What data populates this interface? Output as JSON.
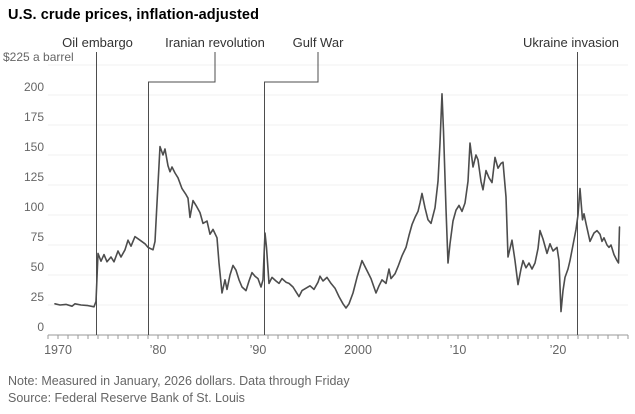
{
  "header": {
    "title": "U.S. crude prices, inflation-adjusted"
  },
  "footer": {
    "note": "Note: Measured in January, 2026 dollars. Data through Friday",
    "source": "Source: Federal Reserve Bank of St. Louis"
  },
  "colors": {
    "line": "#4d4d4d",
    "annotation_line": "#4d4d4d",
    "annotation_text": "#333333",
    "axis_text": "#666666",
    "grid": "#f0f0f0",
    "axis": "#999999",
    "title_text": "#000000"
  },
  "chart_data": {
    "type": "line",
    "title": "U.S. crude prices, inflation-adjusted",
    "y_axis_top_label": "$225 a barrel",
    "grid": true,
    "x_range": [
      1969,
      2027
    ],
    "y_range": [
      0,
      225
    ],
    "y_ticks": [
      0,
      25,
      50,
      75,
      100,
      125,
      150,
      175,
      200,
      225
    ],
    "x_tick_years": [
      1970,
      1980,
      1990,
      2000,
      2010,
      2020
    ],
    "x_tick_labels": [
      "1970",
      "’80",
      "’90",
      "2000",
      "’10",
      "’20"
    ],
    "minor_tick_step_years": 1,
    "annotations": [
      {
        "label": "Oil embargo",
        "year": 1973.85,
        "label_year": 1973.95,
        "elbow": false
      },
      {
        "label": "Iranian revolution",
        "year": 1979.05,
        "label_year": 1985.7,
        "elbow": true
      },
      {
        "label": "Gulf War",
        "year": 1990.65,
        "label_year": 1996.0,
        "elbow": true
      },
      {
        "label": "Ukraine invasion",
        "year": 2021.95,
        "label_year": 2021.3,
        "elbow": false
      }
    ],
    "series": [
      {
        "name": "U.S. crude price, inflation-adjusted ($ a barrel)",
        "points": [
          [
            1969.7,
            26
          ],
          [
            1970.2,
            25
          ],
          [
            1970.8,
            25.5
          ],
          [
            1971.4,
            24
          ],
          [
            1971.7,
            26
          ],
          [
            1972.3,
            25
          ],
          [
            1973.0,
            24.5
          ],
          [
            1973.6,
            23.5
          ],
          [
            1973.8,
            28
          ],
          [
            1974.0,
            68
          ],
          [
            1974.3,
            61.5
          ],
          [
            1974.6,
            67
          ],
          [
            1974.9,
            61
          ],
          [
            1975.3,
            65
          ],
          [
            1975.6,
            61
          ],
          [
            1976.0,
            70
          ],
          [
            1976.3,
            65
          ],
          [
            1976.7,
            71
          ],
          [
            1977.0,
            79
          ],
          [
            1977.3,
            74
          ],
          [
            1977.7,
            82
          ],
          [
            1978.2,
            79
          ],
          [
            1978.7,
            76
          ],
          [
            1979.0,
            73
          ],
          [
            1979.5,
            71
          ],
          [
            1979.7,
            78
          ],
          [
            1979.9,
            110
          ],
          [
            1980.2,
            157
          ],
          [
            1980.5,
            150
          ],
          [
            1980.7,
            155
          ],
          [
            1981.0,
            141
          ],
          [
            1981.2,
            136
          ],
          [
            1981.4,
            140
          ],
          [
            1981.7,
            135
          ],
          [
            1982.0,
            131
          ],
          [
            1982.4,
            122
          ],
          [
            1982.8,
            117
          ],
          [
            1983.0,
            114
          ],
          [
            1983.2,
            98
          ],
          [
            1983.5,
            112
          ],
          [
            1983.8,
            108
          ],
          [
            1984.2,
            102
          ],
          [
            1984.5,
            93
          ],
          [
            1984.9,
            95
          ],
          [
            1985.2,
            84
          ],
          [
            1985.5,
            88
          ],
          [
            1985.9,
            81
          ],
          [
            1986.1,
            60
          ],
          [
            1986.4,
            35
          ],
          [
            1986.7,
            46
          ],
          [
            1986.9,
            38
          ],
          [
            1987.2,
            50
          ],
          [
            1987.5,
            58
          ],
          [
            1987.8,
            54
          ],
          [
            1988.1,
            46
          ],
          [
            1988.4,
            40
          ],
          [
            1988.8,
            37
          ],
          [
            1989.1,
            45
          ],
          [
            1989.4,
            52
          ],
          [
            1989.7,
            49
          ],
          [
            1990.0,
            47
          ],
          [
            1990.3,
            40
          ],
          [
            1990.5,
            46
          ],
          [
            1990.7,
            85
          ],
          [
            1990.85,
            73
          ],
          [
            1991.1,
            43
          ],
          [
            1991.4,
            48
          ],
          [
            1991.8,
            45
          ],
          [
            1992.1,
            43
          ],
          [
            1992.4,
            47
          ],
          [
            1992.8,
            44
          ],
          [
            1993.1,
            43
          ],
          [
            1993.5,
            40
          ],
          [
            1993.8,
            36
          ],
          [
            1994.1,
            32
          ],
          [
            1994.4,
            37
          ],
          [
            1994.8,
            39
          ],
          [
            1995.2,
            41
          ],
          [
            1995.6,
            38
          ],
          [
            1996.0,
            44
          ],
          [
            1996.2,
            49
          ],
          [
            1996.5,
            45
          ],
          [
            1996.9,
            48
          ],
          [
            1997.3,
            43
          ],
          [
            1997.7,
            39
          ],
          [
            1998.1,
            32
          ],
          [
            1998.5,
            26
          ],
          [
            1998.8,
            22.5
          ],
          [
            1999.1,
            26
          ],
          [
            1999.5,
            35
          ],
          [
            1999.9,
            48
          ],
          [
            2000.4,
            62
          ],
          [
            2000.7,
            57
          ],
          [
            2001.0,
            52
          ],
          [
            2001.3,
            47
          ],
          [
            2001.8,
            35
          ],
          [
            2002.1,
            41
          ],
          [
            2002.4,
            46
          ],
          [
            2002.8,
            43
          ],
          [
            2003.1,
            55
          ],
          [
            2003.3,
            47
          ],
          [
            2003.7,
            51
          ],
          [
            2004.0,
            57
          ],
          [
            2004.4,
            66
          ],
          [
            2004.8,
            73
          ],
          [
            2005.1,
            83
          ],
          [
            2005.4,
            92
          ],
          [
            2005.7,
            98
          ],
          [
            2006.0,
            103
          ],
          [
            2006.2,
            110
          ],
          [
            2006.4,
            118
          ],
          [
            2006.7,
            106
          ],
          [
            2007.0,
            96
          ],
          [
            2007.3,
            93
          ],
          [
            2007.7,
            106
          ],
          [
            2008.0,
            128
          ],
          [
            2008.2,
            160
          ],
          [
            2008.4,
            201
          ],
          [
            2008.55,
            170
          ],
          [
            2008.8,
            105
          ],
          [
            2009.0,
            60
          ],
          [
            2009.2,
            76
          ],
          [
            2009.5,
            95
          ],
          [
            2009.8,
            104
          ],
          [
            2010.1,
            108
          ],
          [
            2010.4,
            103
          ],
          [
            2010.7,
            110
          ],
          [
            2011.0,
            128
          ],
          [
            2011.2,
            160
          ],
          [
            2011.5,
            140
          ],
          [
            2011.8,
            150
          ],
          [
            2012.0,
            146
          ],
          [
            2012.3,
            128
          ],
          [
            2012.5,
            121
          ],
          [
            2012.8,
            137
          ],
          [
            2013.1,
            131
          ],
          [
            2013.4,
            127
          ],
          [
            2013.7,
            148
          ],
          [
            2014.0,
            139
          ],
          [
            2014.3,
            143
          ],
          [
            2014.5,
            144
          ],
          [
            2014.8,
            115
          ],
          [
            2015.0,
            65
          ],
          [
            2015.4,
            79
          ],
          [
            2015.7,
            62
          ],
          [
            2016.0,
            42
          ],
          [
            2016.3,
            55
          ],
          [
            2016.5,
            62
          ],
          [
            2016.8,
            56
          ],
          [
            2017.1,
            60
          ],
          [
            2017.4,
            55
          ],
          [
            2017.7,
            60
          ],
          [
            2018.0,
            72
          ],
          [
            2018.2,
            87
          ],
          [
            2018.5,
            80
          ],
          [
            2018.9,
            68
          ],
          [
            2019.2,
            76
          ],
          [
            2019.5,
            70
          ],
          [
            2019.9,
            73
          ],
          [
            2020.1,
            62
          ],
          [
            2020.3,
            19.5
          ],
          [
            2020.5,
            37
          ],
          [
            2020.7,
            48
          ],
          [
            2021.0,
            55
          ],
          [
            2021.2,
            62
          ],
          [
            2021.5,
            75
          ],
          [
            2021.8,
            88
          ],
          [
            2022.0,
            100
          ],
          [
            2022.2,
            122
          ],
          [
            2022.45,
            96
          ],
          [
            2022.6,
            101
          ],
          [
            2022.8,
            93
          ],
          [
            2023.2,
            78
          ],
          [
            2023.6,
            85
          ],
          [
            2023.9,
            87
          ],
          [
            2024.2,
            84
          ],
          [
            2024.4,
            78
          ],
          [
            2024.6,
            81
          ],
          [
            2024.9,
            75
          ],
          [
            2025.1,
            73
          ],
          [
            2025.3,
            75
          ],
          [
            2025.6,
            67
          ],
          [
            2025.9,
            62
          ],
          [
            2026.05,
            60
          ],
          [
            2026.15,
            90
          ]
        ]
      }
    ]
  }
}
